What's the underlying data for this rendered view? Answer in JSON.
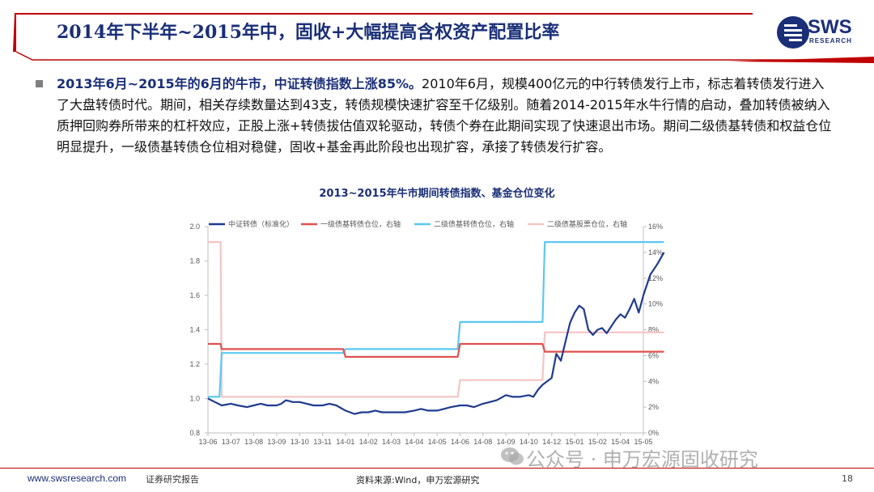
{
  "slide": {
    "title": "2014年下半年~2015年中，固收+大幅提高含权资产配置比率",
    "logo_text": "SWS",
    "logo_sub": "RESEARCH",
    "paragraph_lead": "2013年6月~2015年的6月的牛市，中证转债指数上涨85%。",
    "paragraph_body": "2010年6月，规模400亿元的中行转债发行上市，标志着转债发行进入了大盘转债时代。期间，相关存续数量达到43支，转债规模快速扩容至千亿级别。随着2014-2015年水牛行情的启动，叠加转债被纳入质押回购券所带来的杠杆效应，正股上涨+转债拔估值双轮驱动，转债个券在此期间实现了快速退出市场。期间二级债基转债和权益仓位明显提升，一级债基转债仓位相对稳健，固收+基金再此阶段也出现扩容，承接了转债发行扩容。"
  },
  "footer": {
    "website": "www.swsresearch.com",
    "report_tag": "证券研究报告",
    "source": "资料来源:Wind，申万宏源研究",
    "page": "18",
    "watermark": "公众号 · 申万宏源固收研究"
  },
  "colors": {
    "navy": "#1a2f78",
    "index_line": "#1f3b8f",
    "series_red": "#e0514f",
    "series_cyan": "#5bc8f0",
    "series_pink": "#f5c4c4"
  },
  "chart_data": {
    "type": "line",
    "title": "2013~2015年牛市期间转债指数、基金仓位变化",
    "x_ticks": [
      "13-06",
      "13-07",
      "13-08",
      "13-09",
      "13-10",
      "13-11",
      "14-01",
      "14-02",
      "14-03",
      "14-04",
      "14-05",
      "14-06",
      "14-08",
      "14-09",
      "14-10",
      "14-12",
      "15-01",
      "15-02",
      "15-04",
      "15-05"
    ],
    "ylim_left": [
      0.8,
      2.0
    ],
    "yticks_left": [
      "0.8",
      "1.0",
      "1.2",
      "1.4",
      "1.6",
      "1.8",
      "2.0"
    ],
    "ylim_right": [
      0,
      16
    ],
    "yticks_right": [
      "0%",
      "2%",
      "4%",
      "6%",
      "8%",
      "10%",
      "12%",
      "14%",
      "16%"
    ],
    "grid": false,
    "legend_position": "top",
    "series": [
      {
        "name": "中证转债（标准化）",
        "axis": "left",
        "x": [
          0,
          0.3,
          0.6,
          1.0,
          1.3,
          1.7,
          2.0,
          2.3,
          2.6,
          3.0,
          3.2,
          3.4,
          3.7,
          4.0,
          4.3,
          4.6,
          5.0,
          5.3,
          5.6,
          6.0,
          6.2,
          6.4,
          6.7,
          7.0,
          7.3,
          7.6,
          8.0,
          8.3,
          8.6,
          9.0,
          9.3,
          9.6,
          10.0,
          10.3,
          10.6,
          11.0,
          11.3,
          11.6,
          12.0,
          12.3,
          12.6,
          13.0,
          13.3,
          13.6,
          14.0,
          14.2,
          14.4,
          14.6,
          14.8,
          15.0,
          15.2,
          15.4,
          15.6,
          15.8,
          16.0,
          16.2,
          16.4,
          16.6,
          16.8,
          17.0,
          17.2,
          17.4,
          17.6,
          17.8,
          18.0,
          18.2,
          18.4,
          18.6,
          18.8,
          19.0,
          19.3,
          19.6,
          19.9
        ],
        "values": [
          1.0,
          0.98,
          0.96,
          0.97,
          0.96,
          0.95,
          0.96,
          0.97,
          0.96,
          0.96,
          0.97,
          0.99,
          0.98,
          0.98,
          0.97,
          0.96,
          0.96,
          0.97,
          0.96,
          0.93,
          0.92,
          0.91,
          0.92,
          0.92,
          0.93,
          0.92,
          0.92,
          0.92,
          0.92,
          0.93,
          0.94,
          0.93,
          0.93,
          0.94,
          0.95,
          0.96,
          0.96,
          0.95,
          0.97,
          0.98,
          0.99,
          1.02,
          1.01,
          1.01,
          1.02,
          1.01,
          1.05,
          1.08,
          1.1,
          1.12,
          1.26,
          1.22,
          1.33,
          1.44,
          1.5,
          1.54,
          1.52,
          1.4,
          1.37,
          1.4,
          1.41,
          1.38,
          1.42,
          1.46,
          1.49,
          1.47,
          1.52,
          1.58,
          1.5,
          1.6,
          1.72,
          1.78,
          1.85
        ]
      },
      {
        "name": "一级债基转债仓位，右轴",
        "axis": "right",
        "x": [
          0,
          0.55,
          0.6,
          5.0,
          5.0,
          5.9,
          6.0,
          9.2,
          9.3,
          10.9,
          11.0,
          14.6,
          14.7,
          19.9
        ],
        "values": [
          6.9,
          6.9,
          6.5,
          6.5,
          6.5,
          6.5,
          5.9,
          5.9,
          5.9,
          5.9,
          6.9,
          6.9,
          6.3,
          6.3
        ]
      },
      {
        "name": "二级债基转债仓位，右轴",
        "axis": "right",
        "x": [
          0,
          0.5,
          0.6,
          5.9,
          6.0,
          10.9,
          11.0,
          14.6,
          14.7,
          19.9
        ],
        "values": [
          2.8,
          2.8,
          6.2,
          6.2,
          6.5,
          6.5,
          8.6,
          8.6,
          14.8,
          14.8
        ]
      },
      {
        "name": "二级债基股票仓位，右轴",
        "axis": "right",
        "x": [
          0,
          0.55,
          0.6,
          10.9,
          11.0,
          14.6,
          14.7,
          19.9
        ],
        "values": [
          14.8,
          14.8,
          2.8,
          2.8,
          4.1,
          4.1,
          7.8,
          7.8
        ]
      }
    ]
  }
}
